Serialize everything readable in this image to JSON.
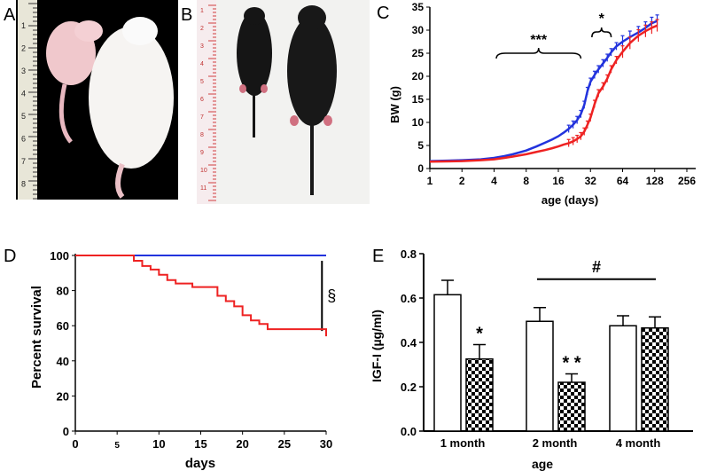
{
  "panels": {
    "A": {
      "label": "A"
    },
    "B": {
      "label": "B"
    },
    "C": {
      "label": "C"
    },
    "D": {
      "label": "D"
    },
    "E": {
      "label": "E"
    }
  },
  "ruler_a": {
    "numbers": [
      "1",
      "2",
      "3",
      "4",
      "5",
      "6",
      "7",
      "8"
    ]
  },
  "ruler_b": {
    "numbers": [
      "1",
      "2",
      "3",
      "4",
      "5",
      "6",
      "7",
      "8",
      "9",
      "10",
      "11"
    ]
  },
  "colors": {
    "blue": "#2233dd",
    "red": "#ee2222",
    "photo_bg": "#000000"
  },
  "chart_data": [
    {
      "id": "C",
      "type": "line",
      "xlabel": "age  (days)",
      "ylabel": "BW (g)",
      "xscale": "log2",
      "xticks": [
        1,
        2,
        4,
        8,
        16,
        32,
        64,
        128,
        256
      ],
      "xlim": [
        1,
        256
      ],
      "yticks": [
        0,
        5,
        10,
        15,
        20,
        25,
        30,
        35
      ],
      "ylim": [
        0,
        35
      ],
      "annotations": {
        "sig1": "***",
        "sig2": "*"
      },
      "series": [
        {
          "color": "#2233dd",
          "x": [
            1,
            2,
            3,
            4,
            5,
            6,
            8,
            10,
            12,
            14,
            16,
            18,
            20,
            22,
            24,
            26,
            28,
            30,
            32,
            35,
            38,
            42,
            46,
            50,
            56,
            64,
            75,
            90,
            105,
            120,
            135
          ],
          "y": [
            1.6,
            1.8,
            2.0,
            2.3,
            2.7,
            3.1,
            3.9,
            4.8,
            5.6,
            6.3,
            7.0,
            7.8,
            8.6,
            9.5,
            10.5,
            11.8,
            13.8,
            16.8,
            18.8,
            20.3,
            21.5,
            22.8,
            24.0,
            25.2,
            26.5,
            27.5,
            28.5,
            29.5,
            30.5,
            31.5,
            32.0
          ]
        },
        {
          "color": "#ee2222",
          "x": [
            1,
            2,
            3,
            4,
            5,
            6,
            8,
            10,
            12,
            14,
            16,
            18,
            20,
            22,
            24,
            26,
            28,
            30,
            32,
            35,
            38,
            42,
            46,
            50,
            56,
            64,
            75,
            90,
            105,
            120,
            135
          ],
          "y": [
            1.5,
            1.6,
            1.8,
            2.0,
            2.3,
            2.6,
            3.1,
            3.6,
            4.0,
            4.4,
            4.8,
            5.2,
            5.5,
            5.9,
            6.4,
            7.0,
            8.0,
            9.5,
            11.0,
            14.0,
            16.3,
            17.8,
            19.5,
            21.5,
            23.5,
            25.3,
            27.2,
            28.8,
            29.8,
            30.5,
            31.0
          ]
        }
      ]
    },
    {
      "id": "D",
      "type": "line",
      "ylabel": "Percent survival",
      "xlabel": "days",
      "xticks": [
        0,
        5,
        10,
        15,
        20,
        25,
        30
      ],
      "xlim": [
        0,
        30
      ],
      "yticks": [
        0,
        20,
        40,
        60,
        80,
        100
      ],
      "ylim": [
        0,
        100
      ],
      "annotations": {
        "sig": "§"
      },
      "series": [
        {
          "color": "#2233dd",
          "x": [
            0,
            30
          ],
          "y": [
            100,
            100
          ]
        },
        {
          "color": "#ee2222",
          "step": true,
          "x": [
            0,
            7,
            8,
            9,
            10,
            11,
            12,
            14,
            17,
            18,
            19,
            20,
            21,
            22,
            23,
            30
          ],
          "y": [
            100,
            97,
            94,
            92,
            89,
            86,
            84,
            82,
            77,
            74,
            71,
            66,
            63,
            61,
            58,
            54
          ]
        }
      ]
    },
    {
      "id": "E",
      "type": "bar",
      "ylabel": "IGF-I  (µg/ml)",
      "xlabel": "age",
      "categories": [
        "1 month",
        "2 month",
        "4 month"
      ],
      "yticks": [
        0.0,
        0.2,
        0.4,
        0.6,
        0.8
      ],
      "ylim": [
        0,
        0.8
      ],
      "series": [
        {
          "pattern": "white",
          "values": [
            0.615,
            0.495,
            0.475
          ],
          "errors": [
            0.065,
            0.062,
            0.045
          ]
        },
        {
          "pattern": "checker",
          "values": [
            0.325,
            0.22,
            0.465
          ],
          "errors": [
            0.065,
            0.038,
            0.05
          ]
        }
      ],
      "annotations": {
        "star1": "*",
        "star2": "* *",
        "hash": "#"
      }
    }
  ]
}
